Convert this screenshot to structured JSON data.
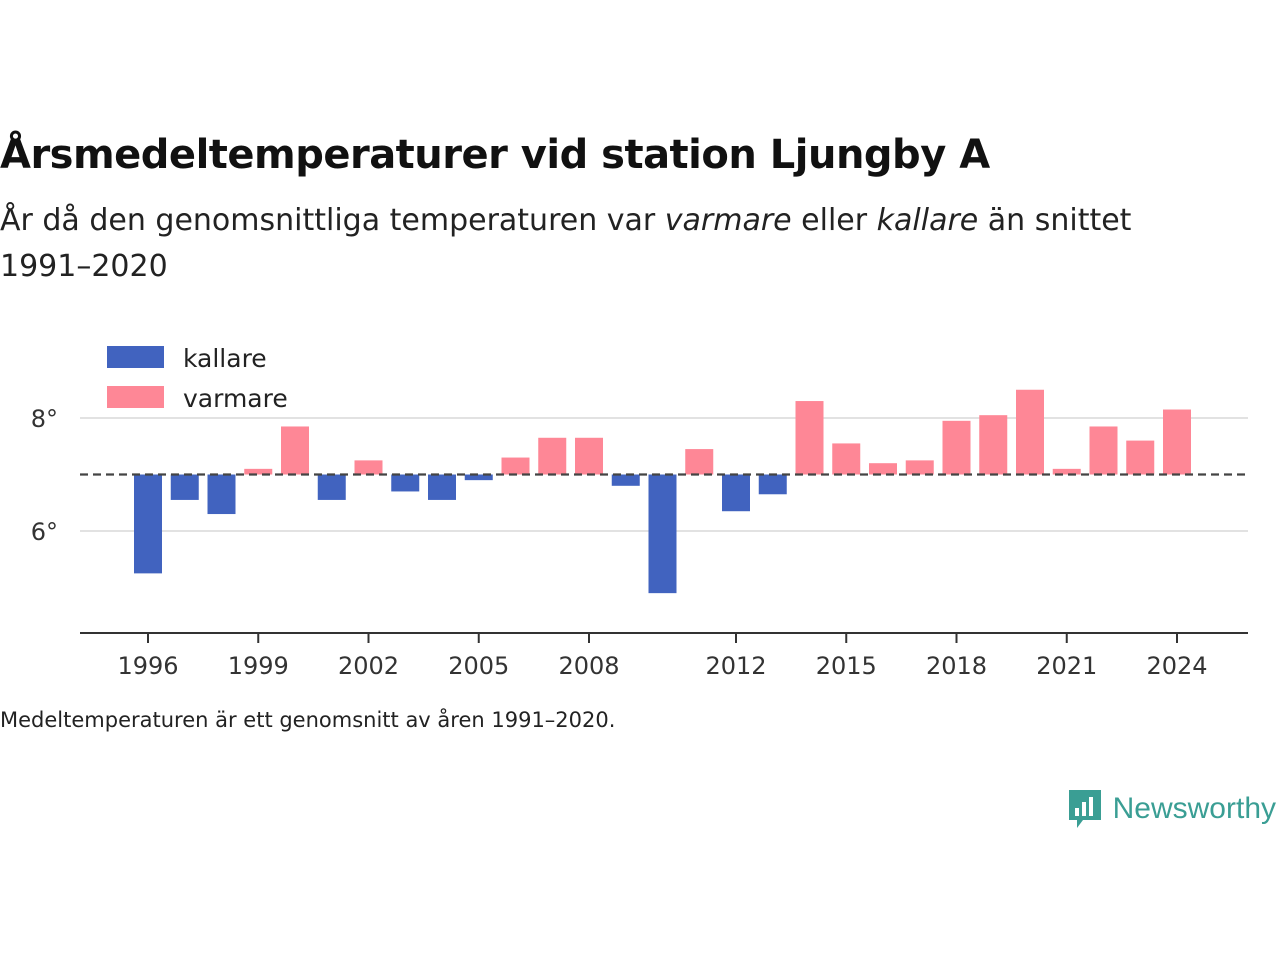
{
  "header": {
    "title": "Årsmedeltemperaturer vid station Ljungby A",
    "subtitle_parts": [
      "År då den genomsnittliga temperaturen var ",
      "varmare",
      " eller ",
      "kallare",
      " än snittet 1991–2020"
    ]
  },
  "footnote": "Medeltemperaturen är ett genomsnitt av åren 1991–2020.",
  "brand": {
    "name": "Newsworthy",
    "icon": "chart-bubble-icon",
    "color": "#3a9e94"
  },
  "chart_data": {
    "type": "bar",
    "baseline": 7.0,
    "baseline_style": "dashed",
    "ylim": [
      4.2,
      9.2
    ],
    "yticks": [
      6,
      8
    ],
    "ytick_labels": [
      "6°",
      "8°"
    ],
    "xticks": [
      1996,
      1999,
      2002,
      2005,
      2008,
      2012,
      2015,
      2018,
      2021,
      2024
    ],
    "grid": true,
    "legend_position": "top-left",
    "series": [
      {
        "name": "kallare",
        "color": "#4163bf"
      },
      {
        "name": "varmare",
        "color": "#fe8796"
      }
    ],
    "x": [
      1996,
      1997,
      1998,
      1999,
      2000,
      2001,
      2002,
      2003,
      2004,
      2005,
      2006,
      2007,
      2008,
      2009,
      2010,
      2011,
      2012,
      2013,
      2014,
      2015,
      2016,
      2017,
      2018,
      2019,
      2020,
      2021,
      2022,
      2023,
      2024
    ],
    "values": [
      5.25,
      6.55,
      6.3,
      7.1,
      7.85,
      6.55,
      7.25,
      6.7,
      6.55,
      6.9,
      7.3,
      7.65,
      7.65,
      6.8,
      4.9,
      7.45,
      6.35,
      6.65,
      8.3,
      7.55,
      7.2,
      7.25,
      7.95,
      8.05,
      8.5,
      7.1,
      7.85,
      7.6,
      8.15
    ]
  }
}
